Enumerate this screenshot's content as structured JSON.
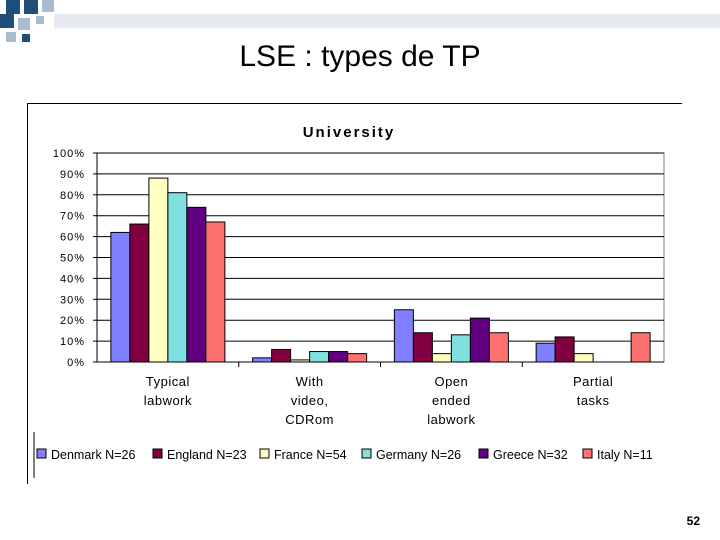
{
  "slide": {
    "title": "LSE : types de TP",
    "page_number": "52"
  },
  "colors": {
    "deco_square": "#1f4e79",
    "deco_square_light": "#a9bcd0",
    "plot_bg": "#ffffff",
    "gridline": "#000000"
  },
  "chart_data": {
    "type": "bar",
    "title": "University",
    "xlabel": "",
    "ylabel": "",
    "ylim": [
      0,
      100
    ],
    "y_ticks": [
      "0%",
      "10%",
      "20%",
      "30%",
      "40%",
      "50%",
      "60%",
      "70%",
      "80%",
      "90%",
      "100%"
    ],
    "y_tick_values": [
      0,
      10,
      20,
      30,
      40,
      50,
      60,
      70,
      80,
      90,
      100
    ],
    "grid": true,
    "legend_position": "bottom",
    "categories": [
      [
        "Typical",
        "labwork"
      ],
      [
        "With",
        "video,",
        "CDRom"
      ],
      [
        "Open",
        "ended",
        "labwork"
      ],
      [
        "Partial",
        "tasks"
      ]
    ],
    "series": [
      {
        "name": "Denmark N=26",
        "color": "#8080ff",
        "values": [
          62,
          2,
          25,
          9
        ]
      },
      {
        "name": "England N=23",
        "color": "#800040",
        "values": [
          66,
          6,
          14,
          12
        ]
      },
      {
        "name": "France N=54",
        "color": "#ffffc0",
        "values": [
          88,
          1,
          4,
          4
        ]
      },
      {
        "name": "Germany N=26",
        "color": "#80e0e0",
        "values": [
          81,
          5,
          13,
          0
        ]
      },
      {
        "name": "Greece N=32",
        "color": "#600080",
        "values": [
          74,
          5,
          21,
          0
        ]
      },
      {
        "name": "Italy N=11",
        "color": "#ff7070",
        "values": [
          67,
          4,
          14,
          14
        ]
      }
    ]
  }
}
